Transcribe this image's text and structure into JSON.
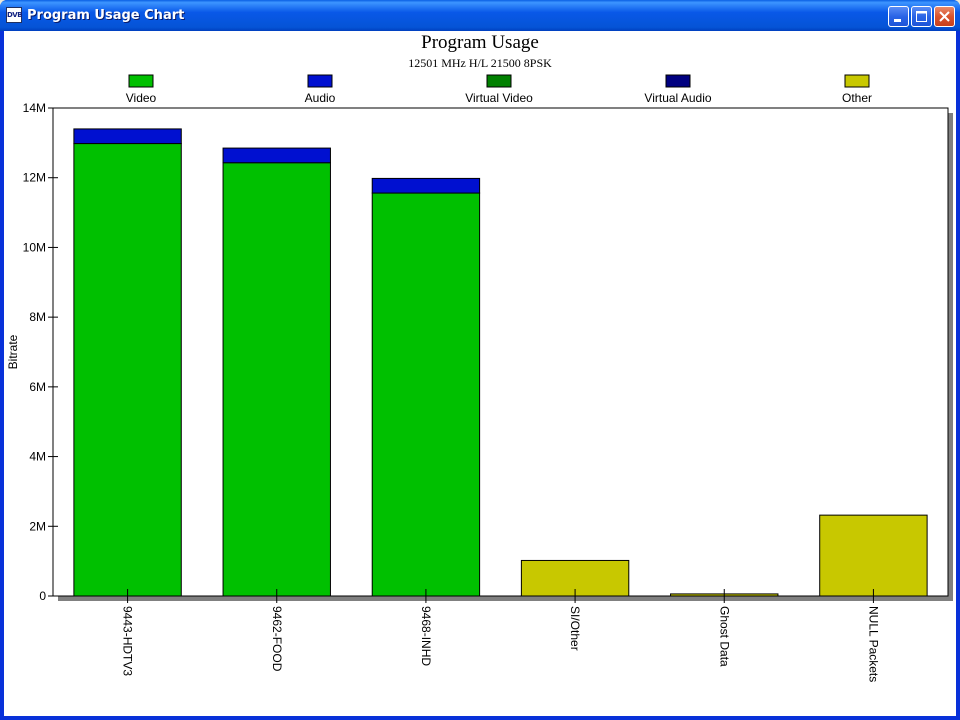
{
  "window": {
    "title": "Program Usage Chart",
    "icon_text": "DVB",
    "controls": [
      "minimize",
      "maximize",
      "close"
    ]
  },
  "chart_data": {
    "type": "bar",
    "stacked": true,
    "title": "Program Usage",
    "subtitle": "12501 MHz H/L 21500 8PSK",
    "xlabel": "",
    "ylabel": "Bitrate",
    "ylim": [
      0,
      14000000
    ],
    "yticks": [
      0,
      2000000,
      4000000,
      6000000,
      8000000,
      10000000,
      12000000,
      14000000
    ],
    "ytick_labels": [
      "0",
      "2M",
      "4M",
      "6M",
      "8M",
      "10M",
      "12M",
      "14M"
    ],
    "categories": [
      "9443-HDTV3",
      "9462-FOOD",
      "9468-INHD",
      "SI/Other",
      "Ghost Data",
      "NULL Packets"
    ],
    "series": [
      {
        "name": "Video",
        "color": "#00c000",
        "values": [
          12980000,
          12430000,
          11560000,
          0,
          0,
          0
        ]
      },
      {
        "name": "Audio",
        "color": "#0010d0",
        "values": [
          420000,
          420000,
          420000,
          0,
          0,
          0
        ]
      },
      {
        "name": "Virtual Video",
        "color": "#008000",
        "values": [
          0,
          0,
          0,
          0,
          0,
          0
        ]
      },
      {
        "name": "Virtual Audio",
        "color": "#000080",
        "values": [
          0,
          0,
          0,
          0,
          0,
          0
        ]
      },
      {
        "name": "Other",
        "color": "#c8c800",
        "values": [
          0,
          0,
          0,
          1020000,
          60000,
          2320000
        ]
      }
    ],
    "grid": false,
    "legend_position": "top"
  }
}
